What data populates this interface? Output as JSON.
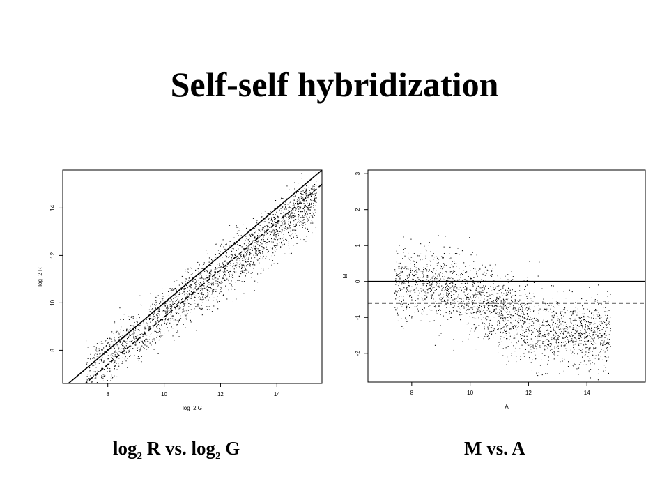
{
  "slide": {
    "title": "Self-self hybridization",
    "captions": {
      "left": {
        "part1": "log",
        "sub1": "2",
        "part2": " R vs. log",
        "sub2": "2",
        "part3": " G"
      },
      "right": "M vs. A"
    }
  },
  "chart_data": [
    {
      "type": "scatter",
      "title": "",
      "xlabel": "log_2 G",
      "ylabel": "log_2 R",
      "xlim": [
        6.4,
        15.6
      ],
      "ylim": [
        6.6,
        15.6
      ],
      "xticks": [
        8,
        10,
        12,
        14
      ],
      "yticks": [
        8,
        10,
        12,
        14
      ],
      "grid": false,
      "point_color": "#000000",
      "point_cloud": {
        "approx_points": 2200,
        "x_range": [
          7.2,
          15.5
        ],
        "trend": "y = x - 0.6 * (1 + curvature)"
      },
      "reference_lines": [
        {
          "style": "solid",
          "slope": 1,
          "intercept": 0
        },
        {
          "style": "dashed",
          "slope": 1,
          "intercept": -0.6
        }
      ]
    },
    {
      "type": "scatter",
      "title": "",
      "xlabel": "A",
      "ylabel": "M",
      "xlim": [
        6.5,
        16.0
      ],
      "ylim": [
        -2.8,
        3.1
      ],
      "xticks": [
        8,
        10,
        12,
        14
      ],
      "yticks": [
        -2,
        -1,
        0,
        1,
        2,
        3
      ],
      "grid": false,
      "point_color": "#000000",
      "point_cloud": {
        "approx_points": 2200,
        "x_range": [
          7.2,
          15.0
        ],
        "trend": "M decreases from about 0 at A=8.5 to about -1.4 at A=13"
      },
      "reference_lines": [
        {
          "style": "solid",
          "slope": 0,
          "intercept": 0
        },
        {
          "style": "dashed",
          "slope": 0,
          "intercept": -0.6
        }
      ]
    }
  ]
}
